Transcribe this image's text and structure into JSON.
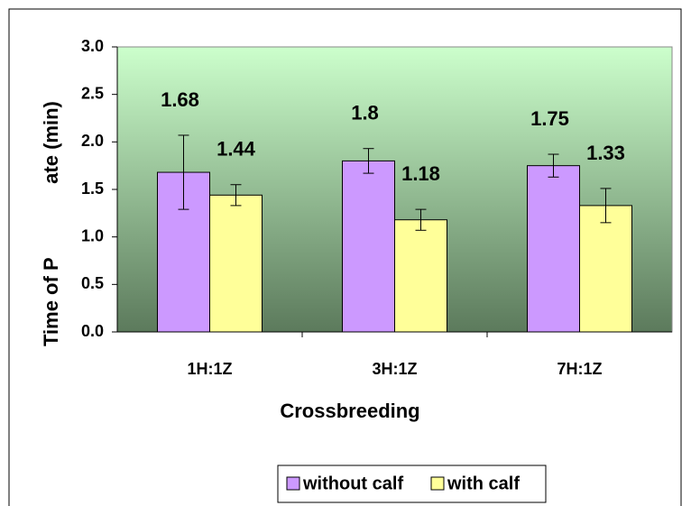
{
  "chart_data": {
    "type": "bar",
    "categories": [
      "1H:1Z",
      "3H:1Z",
      "7H:1Z"
    ],
    "series": [
      {
        "name": "without calf",
        "color": "#cc99ff",
        "values": [
          1.68,
          1.8,
          1.75
        ],
        "errors": [
          0.39,
          0.13,
          0.12
        ]
      },
      {
        "name": "with calf",
        "color": "#ffff99",
        "values": [
          1.44,
          1.18,
          1.33
        ],
        "errors": [
          0.11,
          0.11,
          0.18
        ]
      }
    ],
    "ylim": [
      0,
      3
    ],
    "yticks": [
      {
        "value": 0,
        "label": "0.0"
      },
      {
        "value": 0.5,
        "label": "0.5"
      },
      {
        "value": 1,
        "label": "1.0"
      },
      {
        "value": 1.5,
        "label": "1.5"
      },
      {
        "value": 2,
        "label": "2.0"
      },
      {
        "value": 2.5,
        "label": "2.5"
      },
      {
        "value": 3,
        "label": "3.0"
      }
    ],
    "xlabel": "Crossbreeding",
    "ylabel": [
      "Time of P",
      "ate (min)"
    ],
    "legend": "bottom"
  }
}
